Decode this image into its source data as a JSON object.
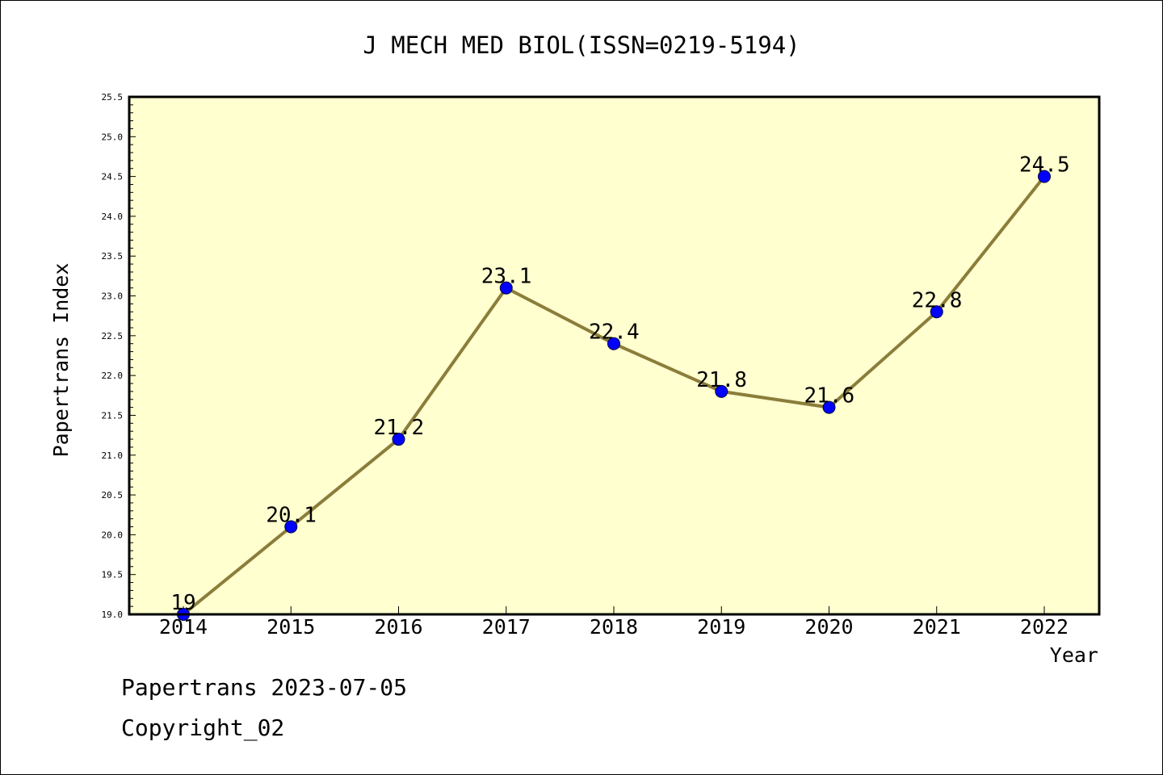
{
  "chart_data": {
    "type": "line",
    "title": "J MECH MED BIOL(ISSN=0219-5194)",
    "xlabel": "Year",
    "ylabel": "Papertrans Index",
    "categories": [
      "2014",
      "2015",
      "2016",
      "2017",
      "2018",
      "2019",
      "2020",
      "2021",
      "2022"
    ],
    "series": [
      {
        "values": [
          19,
          20.1,
          21.2,
          23.1,
          22.4,
          21.8,
          21.6,
          22.8,
          24.5
        ]
      }
    ],
    "data_labels": [
      "19",
      "20.1",
      "21.2",
      "23.1",
      "22.4",
      "21.8",
      "21.6",
      "22.8",
      "24.5"
    ],
    "ylim": [
      19.0,
      25.5
    ],
    "yticks": [
      "19.0",
      "19.5",
      "20.0",
      "20.5",
      "21.0",
      "21.5",
      "22.0",
      "22.5",
      "23.0",
      "23.5",
      "24.0",
      "24.5",
      "25.0",
      "25.5"
    ],
    "grid": false,
    "colors": {
      "plot_background": "#ffffd0",
      "line": "#8b7d3a",
      "marker": "#0000ff"
    }
  },
  "footer": {
    "source": "Papertrans 2023-07-05",
    "copyright": "Copyright_02"
  }
}
